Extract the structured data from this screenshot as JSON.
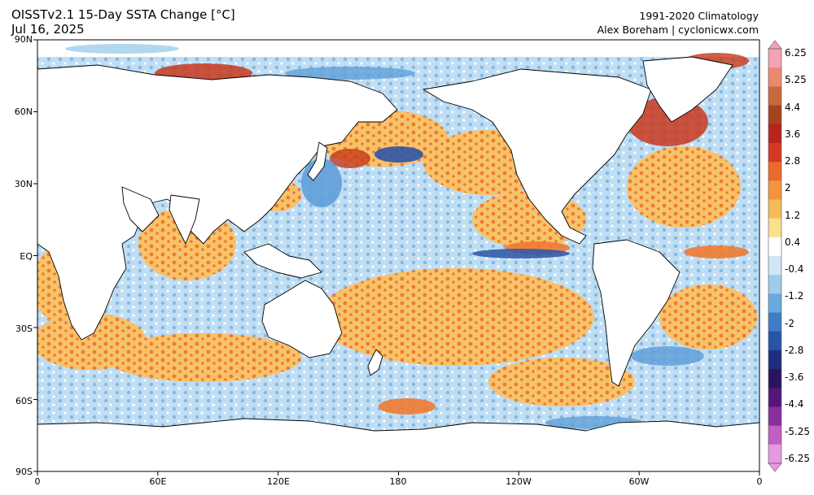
{
  "header": {
    "title": "OISSTv2.1 15-Day SSTA Change [°C]",
    "date": "Jul 16, 2025",
    "climatology": "1991-2020 Climatology",
    "credit": "Alex Boreham | cyclonicwx.com"
  },
  "axes": {
    "lat_labels": [
      "90N",
      "60N",
      "30N",
      "EQ",
      "30S",
      "60S",
      "90S"
    ],
    "lon_labels": [
      "0",
      "60E",
      "120E",
      "180",
      "120W",
      "60W",
      "0"
    ]
  },
  "colorbar": {
    "labels": [
      "6.25",
      "5.25",
      "4.4",
      "3.6",
      "2.8",
      "2",
      "1.2",
      "0.4",
      "-0.4",
      "-1.2",
      "-2",
      "-2.8",
      "-3.6",
      "-4.4",
      "-5.25",
      "-6.25"
    ],
    "colors": [
      "#f4a3b4",
      "#e98a6f",
      "#c76a3a",
      "#a3441e",
      "#b8241c",
      "#d43a22",
      "#ea6a2c",
      "#f4953c",
      "#f6bc5a",
      "#f9e08c",
      "#ffffff",
      "#cfe6f5",
      "#9fcbec",
      "#6aa9dd",
      "#3f7cc6",
      "#2a55a6",
      "#1d2f7d",
      "#2a1460",
      "#55167a",
      "#8a2f9e",
      "#c05fc4",
      "#e59ae0"
    ]
  },
  "map": {
    "anomaly_colors": {
      "warm_strong": "#c8381c",
      "warm": "#ef7a30",
      "warm_light": "#f7c36a",
      "cool_light": "#a9d3ef",
      "cool": "#5f9fd8",
      "cool_strong": "#2d55a8"
    },
    "land_color": "#ffffff",
    "coastline_color": "#000000"
  }
}
